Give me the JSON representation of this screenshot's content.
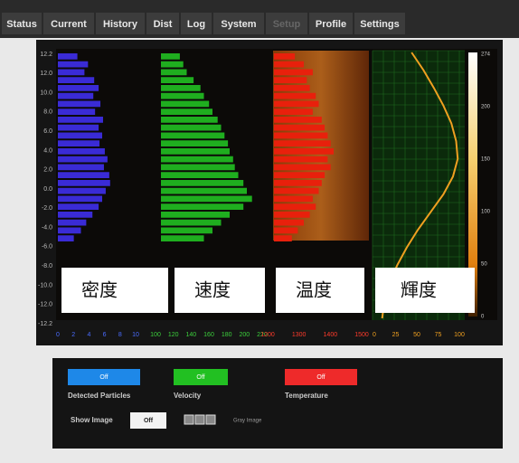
{
  "tabs": [
    {
      "label": "Status"
    },
    {
      "label": "Current"
    },
    {
      "label": "History"
    },
    {
      "label": "Dist"
    },
    {
      "label": "Log"
    },
    {
      "label": "System"
    },
    {
      "label": "Setup",
      "disabled": true
    },
    {
      "label": "Profile"
    },
    {
      "label": "Settings"
    }
  ],
  "y_axis_labels": [
    "12.2",
    "12.0",
    "10.0",
    "8.0",
    "6.0",
    "4.0",
    "2.0",
    "0.0",
    "-2.0",
    "-4.0",
    "-6.0",
    "-8.0",
    "-10.0",
    "-12.0",
    "-12.2"
  ],
  "panels": [
    {
      "label": "密度",
      "color": "#3a2bd6",
      "axis_color": "#4a6cff",
      "xlim": [
        0,
        10
      ],
      "xticks": [
        "0",
        "2",
        "4",
        "6",
        "8",
        "10"
      ],
      "bars": [
        2.2,
        3.4,
        3.0,
        4.1,
        4.6,
        4.0,
        4.8,
        4.2,
        5.1,
        4.6,
        5.0,
        4.7,
        5.3,
        5.6,
        5.2,
        5.8,
        5.9,
        5.4,
        5.0,
        4.6,
        3.9,
        3.2,
        2.6,
        1.8
      ]
    },
    {
      "label": "速度",
      "color": "#1fae1f",
      "axis_color": "#3ccf3c",
      "xlim": [
        100,
        220
      ],
      "xticks": [
        "100",
        "120",
        "140",
        "160",
        "180",
        "200",
        "220"
      ],
      "bars": [
        122,
        126,
        130,
        138,
        146,
        150,
        156,
        160,
        166,
        170,
        174,
        178,
        180,
        184,
        186,
        190,
        196,
        200,
        206,
        196,
        180,
        170,
        160,
        150
      ]
    },
    {
      "label": "温度",
      "color": "#e8200c",
      "axis_color": "#ff3b2b",
      "xlim": [
        1200,
        1500
      ],
      "xticks": [
        "1200",
        "1300",
        "1400",
        "1500"
      ],
      "bars": [
        1270,
        1300,
        1330,
        1310,
        1320,
        1340,
        1350,
        1330,
        1360,
        1370,
        1380,
        1390,
        1400,
        1380,
        1390,
        1370,
        1360,
        1350,
        1330,
        1340,
        1320,
        1300,
        1280,
        1260
      ]
    }
  ],
  "luminance": {
    "label": "輝度",
    "color": "#f0a020",
    "xlim": [
      0,
      100
    ],
    "xticks": [
      "0",
      "25",
      "50",
      "75",
      "100"
    ],
    "curve": [
      40,
      55,
      68,
      80,
      90,
      96,
      98,
      92,
      80,
      64,
      48,
      34,
      22,
      12,
      6,
      3
    ]
  },
  "colorbar_labels": [
    "274",
    "200",
    "150",
    "100",
    "50",
    "0"
  ],
  "controls": {
    "toggles": [
      {
        "button": "Off",
        "label": "Detected Particles",
        "color": "#1e88e8"
      },
      {
        "button": "Off",
        "label": "Velocity",
        "color": "#22c022"
      },
      {
        "button": "Off",
        "label": "Temperature",
        "color": "#ee2a2a"
      }
    ],
    "show_image": {
      "label": "Show Image",
      "button": "Off",
      "mode": "Gray Image"
    }
  }
}
